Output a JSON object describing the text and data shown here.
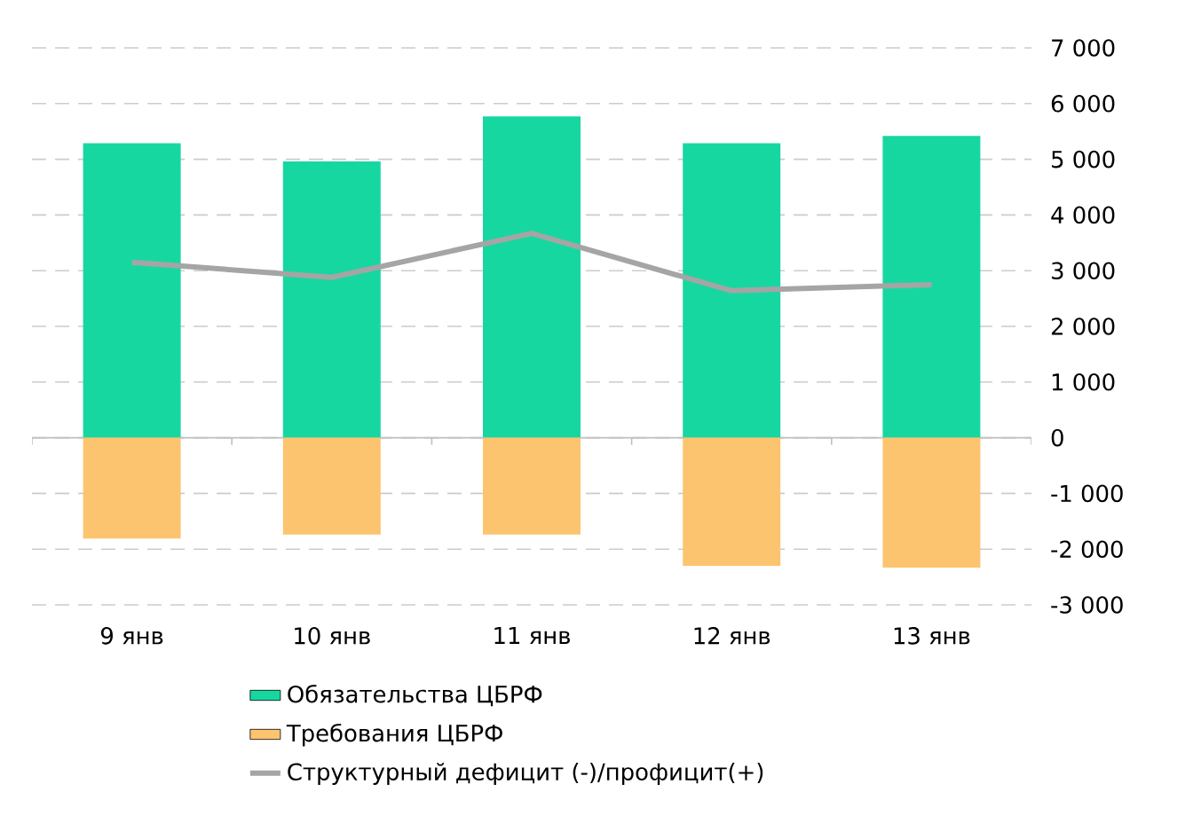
{
  "chart_data": {
    "type": "bar",
    "stacked": true,
    "categories": [
      "9 янв",
      "10 янв",
      "11 янв",
      "12 янв",
      "13 янв"
    ],
    "series": [
      {
        "name": "Обязательства ЦБРФ",
        "color": "#17d7a0",
        "values": [
          5290,
          4960,
          5770,
          5290,
          5420
        ]
      },
      {
        "name": "Требования ЦБРФ",
        "color": "#fdc46f",
        "values": [
          -1810,
          -1740,
          -1740,
          -2300,
          -2330
        ]
      },
      {
        "name": "Структурный дефицит (-)/профицит(+)",
        "type": "line",
        "color": "#a5a5a5",
        "values": [
          3150,
          2880,
          3670,
          2640,
          2750
        ]
      }
    ],
    "ylim": [
      -3000,
      7000
    ],
    "yticks": [
      {
        "value": -3000,
        "label": "-3 000"
      },
      {
        "value": -2000,
        "label": "-2 000"
      },
      {
        "value": -1000,
        "label": "-1 000"
      },
      0,
      {
        "value": 1000,
        "label": "1 000"
      },
      {
        "value": 2000,
        "label": "2 000"
      },
      {
        "value": 3000,
        "label": "3 000"
      },
      {
        "value": 4000,
        "label": "4 000"
      },
      {
        "value": 5000,
        "label": "5 000"
      },
      {
        "value": 6000,
        "label": "6 000"
      },
      {
        "value": 7000,
        "label": "7 000"
      }
    ],
    "grid": "y",
    "legend": "bottom"
  }
}
